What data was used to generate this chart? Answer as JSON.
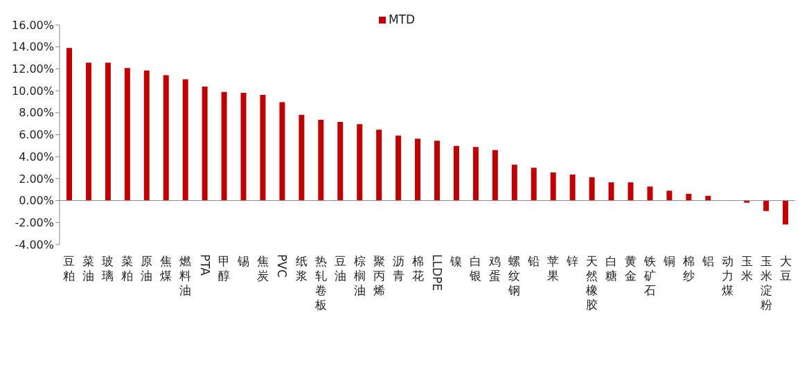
{
  "chart_data": {
    "type": "bar",
    "categories": [
      "豆粕",
      "菜油",
      "玻璃",
      "菜粕",
      "原油",
      "焦煤",
      "燃料油",
      "PTA",
      "甲醇",
      "锡",
      "焦炭",
      "PVC",
      "纸浆",
      "热轧卷板",
      "豆油",
      "棕榈油",
      "聚丙烯",
      "沥青",
      "棉花",
      "LLDPE",
      "镍",
      "白银",
      "鸡蛋",
      "螺纹钢",
      "铅",
      "苹果",
      "锌",
      "天然橡胶",
      "白糖",
      "黄金",
      "铁矿石",
      "铜",
      "棉纱",
      "铝",
      "动力煤",
      "玉米",
      "玉米淀粉",
      "大豆"
    ],
    "series": [
      {
        "name": "MTD",
        "color": "#c00000",
        "values": [
          13.9,
          12.56,
          12.56,
          12.08,
          11.85,
          11.42,
          11.04,
          10.38,
          9.9,
          9.81,
          9.62,
          8.96,
          7.82,
          7.35,
          7.16,
          6.97,
          6.45,
          5.92,
          5.64,
          5.45,
          4.98,
          4.88,
          4.6,
          3.27,
          2.99,
          2.56,
          2.37,
          2.13,
          1.66,
          1.66,
          1.28,
          0.9,
          0.62,
          0.43,
          0,
          -0.19,
          -0.95,
          -2.18
        ]
      }
    ],
    "ylim": [
      -4,
      16
    ],
    "yticks": [
      {
        "value": -4,
        "label": "-4.00%"
      },
      {
        "value": -2,
        "label": "-2.00%"
      },
      {
        "value": 0,
        "label": "0.00%"
      },
      {
        "value": 2,
        "label": "2.00%"
      },
      {
        "value": 4,
        "label": "4.00%"
      },
      {
        "value": 6,
        "label": "6.00%"
      },
      {
        "value": 8,
        "label": "8.00%"
      },
      {
        "value": 10,
        "label": "10.00%"
      },
      {
        "value": 12,
        "label": "12.00%"
      },
      {
        "value": 14,
        "label": "14.00%"
      },
      {
        "value": 16,
        "label": "16.00%"
      }
    ],
    "ref_lines": [
      {
        "axis": "y",
        "value": 0,
        "color": "#888888"
      }
    ],
    "legend": "top"
  }
}
